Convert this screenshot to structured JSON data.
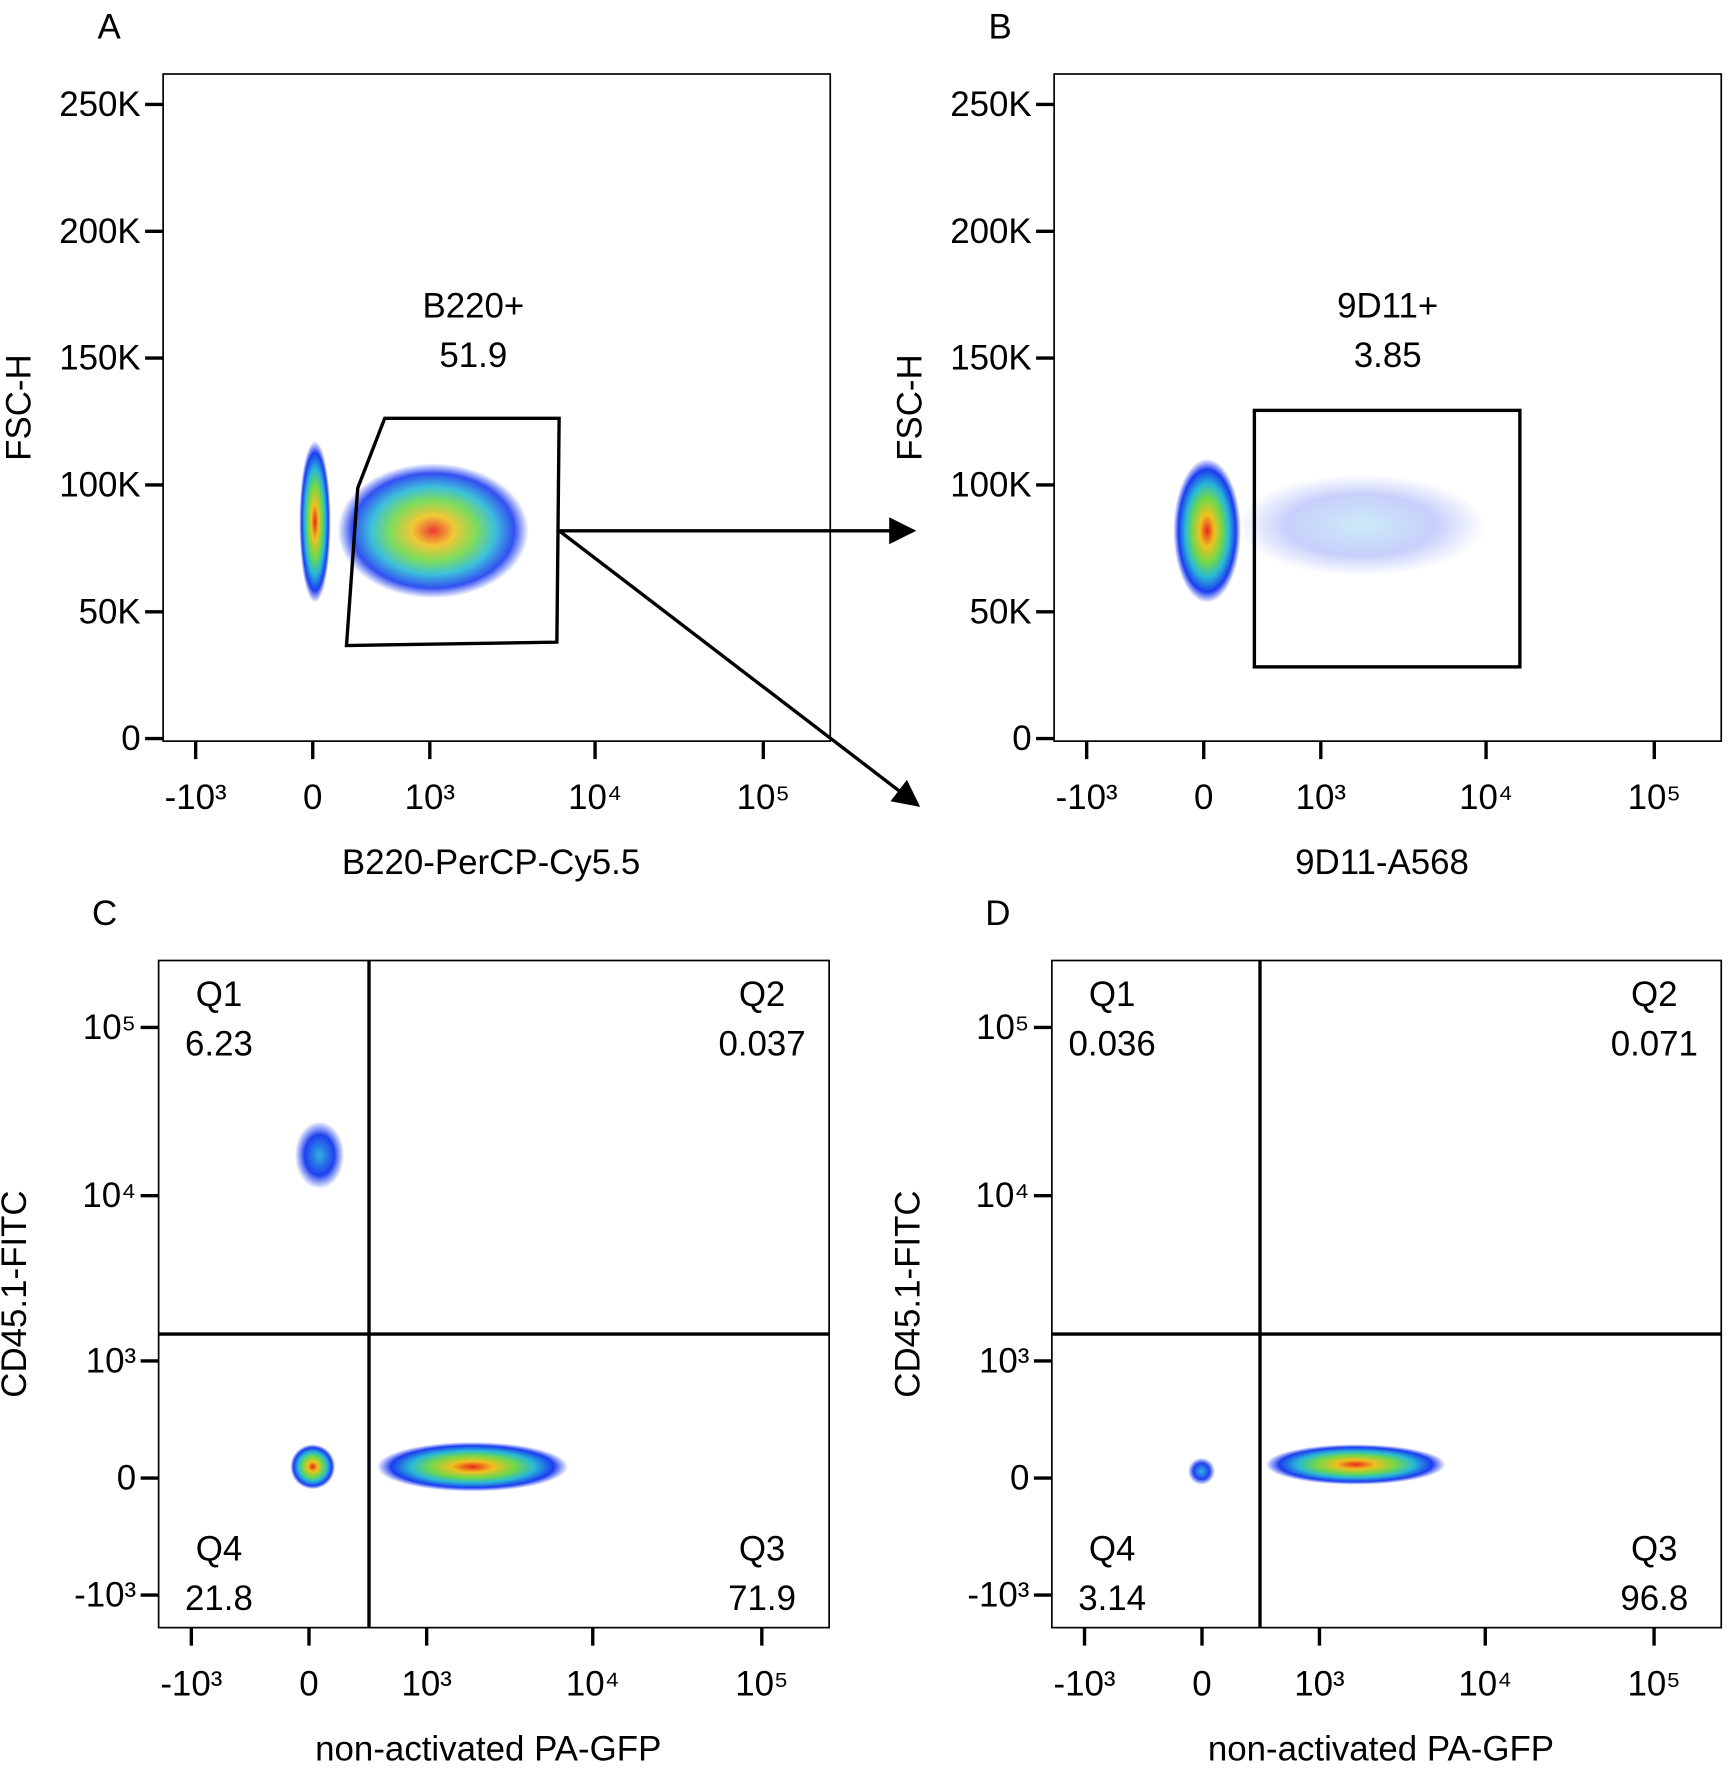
{
  "chart_data": [
    {
      "type": "scatter",
      "panel_label": "A",
      "xlabel": "B220-PerCP-Cy5.5",
      "ylabel": "FSC-H",
      "xscale": "biexponential",
      "yscale": "linear",
      "xlim": [
        -1600,
        250000
      ],
      "ylim": [
        -1000,
        262000
      ],
      "xticks": [
        {
          "value": -1000,
          "label": "-10³"
        },
        0,
        {
          "value": 1000,
          "label": "10³"
        },
        {
          "value": 10000,
          "label": "10⁴"
        },
        {
          "value": 100000,
          "label": "10⁵"
        }
      ],
      "yticks": [
        0,
        {
          "value": 50000,
          "label": "50K"
        },
        {
          "value": 100000,
          "label": "100K"
        },
        {
          "value": 150000,
          "label": "150K"
        },
        {
          "value": 200000,
          "label": "200K"
        },
        {
          "value": 250000,
          "label": "250K"
        }
      ],
      "gates": [
        {
          "name": "B220+",
          "value": 51.9
        }
      ]
    },
    {
      "type": "scatter",
      "panel_label": "B",
      "xlabel": "9D11-A568",
      "ylabel": "FSC-H",
      "xscale": "biexponential",
      "yscale": "linear",
      "xlim": [
        -1600,
        250000
      ],
      "ylim": [
        -1000,
        262000
      ],
      "xticks": [
        {
          "value": -1000,
          "label": "-10³"
        },
        0,
        {
          "value": 1000,
          "label": "10³"
        },
        {
          "value": 10000,
          "label": "10⁴"
        },
        {
          "value": 100000,
          "label": "10⁵"
        }
      ],
      "yticks": [
        0,
        {
          "value": 50000,
          "label": "50K"
        },
        {
          "value": 100000,
          "label": "100K"
        },
        {
          "value": 150000,
          "label": "150K"
        },
        {
          "value": 200000,
          "label": "200K"
        },
        {
          "value": 250000,
          "label": "250K"
        }
      ],
      "gates": [
        {
          "name": "9D11+",
          "value": 3.85
        }
      ]
    },
    {
      "type": "scatter",
      "panel_label": "C",
      "xlabel": "non-activated PA-GFP",
      "ylabel": "CD45.1-FITC",
      "xscale": "biexponential",
      "yscale": "biexponential",
      "xlim": [
        -1600,
        250000
      ],
      "ylim": [
        -1600,
        250000
      ],
      "xticks": [
        {
          "value": -1000,
          "label": "-10³"
        },
        0,
        {
          "value": 1000,
          "label": "10³"
        },
        {
          "value": 10000,
          "label": "10⁴"
        },
        {
          "value": 100000,
          "label": "10⁵"
        }
      ],
      "yticks": [
        {
          "value": -1000,
          "label": "-10³"
        },
        0,
        {
          "value": 1000,
          "label": "10³"
        },
        {
          "value": 10000,
          "label": "10⁴"
        },
        {
          "value": 100000,
          "label": "10⁵"
        }
      ],
      "gates": [
        {
          "name": "Q1",
          "value": 6.23
        },
        {
          "name": "Q2",
          "value": 0.037
        },
        {
          "name": "Q3",
          "value": 71.9
        },
        {
          "name": "Q4",
          "value": 21.8
        }
      ]
    },
    {
      "type": "scatter",
      "panel_label": "D",
      "xlabel": "non-activated PA-GFP",
      "ylabel": "CD45.1-FITC",
      "xscale": "biexponential",
      "yscale": "biexponential",
      "xlim": [
        -1600,
        250000
      ],
      "ylim": [
        -1600,
        250000
      ],
      "xticks": [
        {
          "value": -1000,
          "label": "-10³"
        },
        0,
        {
          "value": 1000,
          "label": "10³"
        },
        {
          "value": 10000,
          "label": "10⁴"
        },
        {
          "value": 100000,
          "label": "10⁵"
        }
      ],
      "yticks": [
        {
          "value": -1000,
          "label": "-10³"
        },
        0,
        {
          "value": 1000,
          "label": "10³"
        },
        {
          "value": 10000,
          "label": "10⁴"
        },
        {
          "value": 100000,
          "label": "10⁵"
        }
      ],
      "gates": [
        {
          "name": "Q1",
          "value": 0.036
        },
        {
          "name": "Q2",
          "value": 0.071
        },
        {
          "name": "Q3",
          "value": 96.8
        },
        {
          "name": "Q4",
          "value": 3.14
        }
      ]
    }
  ]
}
